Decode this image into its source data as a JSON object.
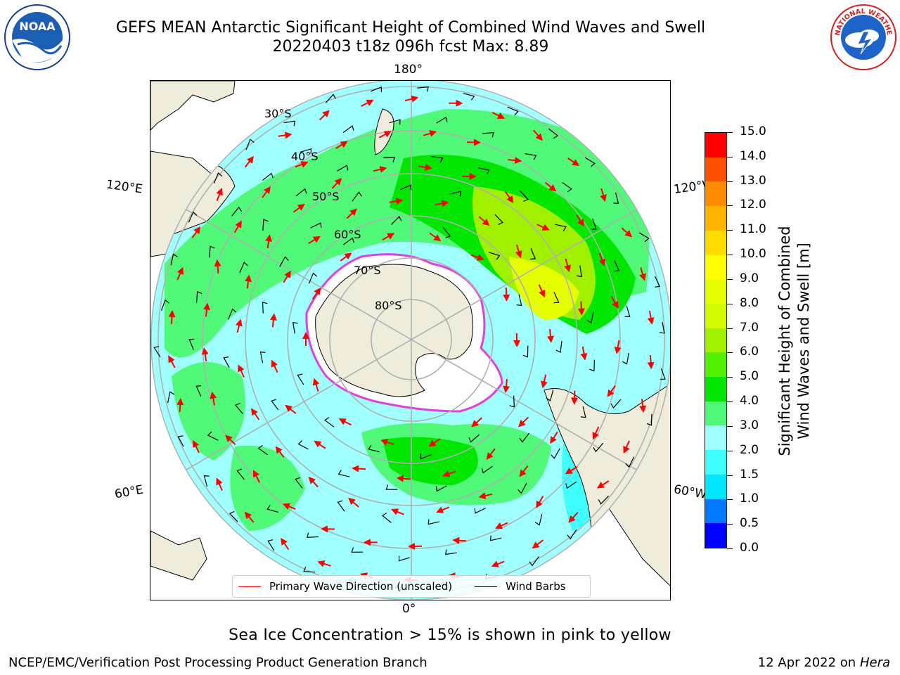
{
  "title": {
    "line1": "GEFS MEAN Antarctic Significant Height of Combined Wind Waves and Swell",
    "line2": "20220403 t18z 096h fcst   Max: 8.89"
  },
  "logos": {
    "left": {
      "icon": "noaa-logo",
      "text": "NOAA"
    },
    "right": {
      "icon": "nws-logo",
      "text": "NATIONAL WEATHER SERVICE"
    }
  },
  "map": {
    "projection": "south-polar-stereographic",
    "longitude_labels": {
      "top": "180°",
      "bottom": "0°",
      "upper_left": "120°E",
      "upper_right": "120°W",
      "lower_left": "60°E",
      "lower_right": "60°W"
    },
    "latitude_labels": [
      "30°S",
      "40°S",
      "50°S",
      "60°S",
      "70°S",
      "80°S"
    ],
    "colors": {
      "land": "#efecdc",
      "gridline": "#b0b0b0",
      "ice": "#ffffff",
      "ice_edge": "#e040e0",
      "wave_arrow": "#ff0000",
      "wind_barb": "#000000"
    }
  },
  "legend": {
    "wave_direction": "Primary Wave Direction (unscaled)",
    "wind_barbs": "Wind Barbs"
  },
  "colorbar": {
    "title_line1": "Significant Height of Combined",
    "title_line2": "Wind Waves and Swell [m]",
    "ticks": [
      "0.0",
      "0.5",
      "1.0",
      "1.5",
      "2.0",
      "3.0",
      "4.0",
      "5.0",
      "6.0",
      "7.0",
      "8.0",
      "9.0",
      "10.0",
      "11.0",
      "12.0",
      "13.0",
      "14.0",
      "15.0"
    ],
    "colors": [
      "#0000ff",
      "#0078ff",
      "#00e6ff",
      "#40ffff",
      "#a0ffff",
      "#50fa78",
      "#00e600",
      "#50f000",
      "#a0f000",
      "#d2fa00",
      "#e6ff00",
      "#ffff00",
      "#ffdc00",
      "#ffb400",
      "#ff8c00",
      "#ff5000",
      "#ff0000"
    ]
  },
  "sea_ice_note": "Sea Ice Concentration > 15% is shown in pink to yellow",
  "footer": {
    "left": "NCEP/EMC/Verification Post Processing Product Generation Branch",
    "right_prefix": "12 Apr 2022 on ",
    "right_machine": "Hera"
  }
}
